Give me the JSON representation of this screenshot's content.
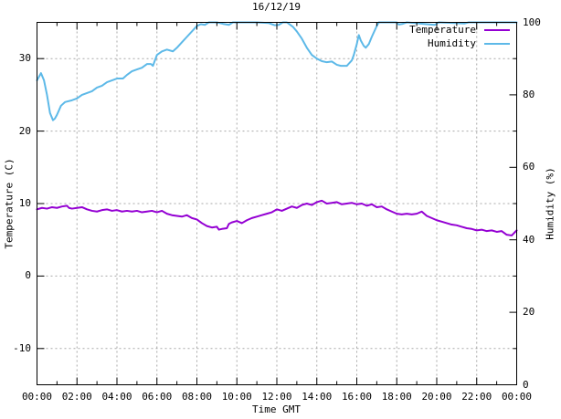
{
  "chart_data": {
    "type": "line",
    "title": "16/12/19",
    "xlabel": "Time GMT",
    "ylabel_left": "Temperature (C)",
    "ylabel_right": "Humidity (%)",
    "x_range_hours": [
      0,
      24
    ],
    "y_left_range": [
      -15,
      35
    ],
    "y_right_range": [
      0,
      100
    ],
    "grid": true,
    "legend_position": "top-right-inside",
    "grid_color": "#a8a8a8",
    "border_color": "#000000",
    "x_ticks": {
      "hours": [
        0,
        2,
        4,
        6,
        8,
        10,
        12,
        14,
        16,
        18,
        20,
        22,
        24
      ],
      "labels": [
        "00:00",
        "02:00",
        "04:00",
        "06:00",
        "08:00",
        "10:00",
        "12:00",
        "14:00",
        "16:00",
        "18:00",
        "20:00",
        "22:00",
        "00:00"
      ],
      "minor_every_hours": 1
    },
    "y_left_ticks": {
      "values": [
        30,
        20,
        10,
        0,
        -10
      ],
      "labels": [
        "30",
        "20",
        "10",
        "0",
        "-10"
      ]
    },
    "y_right_ticks": {
      "values": [
        100,
        80,
        60,
        40,
        20,
        0
      ],
      "labels": [
        "100",
        "80",
        "60",
        "40",
        "20",
        "0"
      ]
    },
    "series": [
      {
        "name": "Temperature",
        "axis": "left",
        "color": "#9400d3",
        "points": [
          [
            0,
            9.2
          ],
          [
            0.25,
            9.4
          ],
          [
            0.5,
            9.3
          ],
          [
            0.75,
            9.5
          ],
          [
            1,
            9.4
          ],
          [
            1.25,
            9.6
          ],
          [
            1.5,
            9.7
          ],
          [
            1.6,
            9.4
          ],
          [
            1.75,
            9.3
          ],
          [
            2,
            9.4
          ],
          [
            2.25,
            9.5
          ],
          [
            2.5,
            9.2
          ],
          [
            2.75,
            9.0
          ],
          [
            3,
            8.9
          ],
          [
            3.25,
            9.1
          ],
          [
            3.5,
            9.2
          ],
          [
            3.75,
            9.0
          ],
          [
            4,
            9.1
          ],
          [
            4.25,
            8.9
          ],
          [
            4.5,
            9.0
          ],
          [
            4.75,
            8.9
          ],
          [
            5,
            9.0
          ],
          [
            5.25,
            8.8
          ],
          [
            5.5,
            8.9
          ],
          [
            5.75,
            9.0
          ],
          [
            6,
            8.8
          ],
          [
            6.25,
            9.0
          ],
          [
            6.5,
            8.6
          ],
          [
            6.75,
            8.4
          ],
          [
            7,
            8.3
          ],
          [
            7.25,
            8.2
          ],
          [
            7.5,
            8.4
          ],
          [
            7.75,
            8.0
          ],
          [
            8,
            7.8
          ],
          [
            8.25,
            7.3
          ],
          [
            8.5,
            6.9
          ],
          [
            8.75,
            6.7
          ],
          [
            9,
            6.8
          ],
          [
            9.1,
            6.4
          ],
          [
            9.25,
            6.5
          ],
          [
            9.5,
            6.6
          ],
          [
            9.6,
            7.2
          ],
          [
            9.75,
            7.4
          ],
          [
            10,
            7.6
          ],
          [
            10.25,
            7.3
          ],
          [
            10.5,
            7.7
          ],
          [
            10.75,
            8.0
          ],
          [
            11,
            8.2
          ],
          [
            11.25,
            8.4
          ],
          [
            11.5,
            8.6
          ],
          [
            11.75,
            8.8
          ],
          [
            12,
            9.2
          ],
          [
            12.25,
            9.0
          ],
          [
            12.5,
            9.3
          ],
          [
            12.75,
            9.6
          ],
          [
            13,
            9.4
          ],
          [
            13.25,
            9.8
          ],
          [
            13.5,
            10.0
          ],
          [
            13.75,
            9.8
          ],
          [
            14,
            10.2
          ],
          [
            14.25,
            10.4
          ],
          [
            14.5,
            10.0
          ],
          [
            14.75,
            10.1
          ],
          [
            15,
            10.2
          ],
          [
            15.25,
            9.9
          ],
          [
            15.5,
            10.0
          ],
          [
            15.75,
            10.1
          ],
          [
            16,
            9.9
          ],
          [
            16.25,
            10.0
          ],
          [
            16.5,
            9.7
          ],
          [
            16.75,
            9.9
          ],
          [
            17,
            9.5
          ],
          [
            17.25,
            9.6
          ],
          [
            17.5,
            9.2
          ],
          [
            17.75,
            8.9
          ],
          [
            18,
            8.6
          ],
          [
            18.25,
            8.5
          ],
          [
            18.5,
            8.6
          ],
          [
            18.75,
            8.5
          ],
          [
            19,
            8.6
          ],
          [
            19.25,
            8.9
          ],
          [
            19.5,
            8.3
          ],
          [
            19.75,
            8.0
          ],
          [
            20,
            7.7
          ],
          [
            20.25,
            7.5
          ],
          [
            20.5,
            7.3
          ],
          [
            20.75,
            7.1
          ],
          [
            21,
            7.0
          ],
          [
            21.25,
            6.8
          ],
          [
            21.5,
            6.6
          ],
          [
            21.75,
            6.5
          ],
          [
            22,
            6.3
          ],
          [
            22.25,
            6.4
          ],
          [
            22.5,
            6.2
          ],
          [
            22.75,
            6.3
          ],
          [
            23,
            6.1
          ],
          [
            23.25,
            6.2
          ],
          [
            23.5,
            5.7
          ],
          [
            23.75,
            5.6
          ],
          [
            24,
            6.3
          ]
        ]
      },
      {
        "name": "Humidity",
        "axis": "right",
        "color": "#5db9e8",
        "points": [
          [
            0,
            84
          ],
          [
            0.2,
            86
          ],
          [
            0.35,
            84
          ],
          [
            0.5,
            80
          ],
          [
            0.65,
            75
          ],
          [
            0.8,
            73
          ],
          [
            0.9,
            73.5
          ],
          [
            1,
            74.5
          ],
          [
            1.2,
            77
          ],
          [
            1.4,
            78
          ],
          [
            1.75,
            78.5
          ],
          [
            2,
            79
          ],
          [
            2.25,
            80
          ],
          [
            2.5,
            80.5
          ],
          [
            2.75,
            81
          ],
          [
            3,
            82
          ],
          [
            3.25,
            82.5
          ],
          [
            3.5,
            83.5
          ],
          [
            3.75,
            84
          ],
          [
            4,
            84.5
          ],
          [
            4.3,
            84.5
          ],
          [
            4.5,
            85.5
          ],
          [
            4.75,
            86.5
          ],
          [
            5,
            87
          ],
          [
            5.25,
            87.5
          ],
          [
            5.5,
            88.5
          ],
          [
            5.7,
            88.5
          ],
          [
            5.8,
            88
          ],
          [
            6,
            91
          ],
          [
            6.25,
            92
          ],
          [
            6.5,
            92.5
          ],
          [
            6.8,
            92
          ],
          [
            7,
            93
          ],
          [
            7.25,
            94.5
          ],
          [
            7.5,
            96
          ],
          [
            7.75,
            97.5
          ],
          [
            8,
            99
          ],
          [
            8.2,
            99.5
          ],
          [
            8.4,
            99.3
          ],
          [
            8.6,
            100
          ],
          [
            9,
            100
          ],
          [
            9.3,
            99.6
          ],
          [
            9.6,
            99.3
          ],
          [
            9.8,
            100
          ],
          [
            11,
            100
          ],
          [
            11.6,
            99.8
          ],
          [
            11.9,
            99.2
          ],
          [
            12.1,
            99.3
          ],
          [
            12.3,
            100
          ],
          [
            12.5,
            100
          ],
          [
            12.6,
            99.6
          ],
          [
            12.8,
            98.8
          ],
          [
            13,
            97.5
          ],
          [
            13.25,
            95.5
          ],
          [
            13.5,
            93
          ],
          [
            13.75,
            91
          ],
          [
            14,
            90
          ],
          [
            14.25,
            89.3
          ],
          [
            14.5,
            89
          ],
          [
            14.75,
            89.2
          ],
          [
            15,
            88.3
          ],
          [
            15.2,
            88
          ],
          [
            15.5,
            88
          ],
          [
            15.75,
            89.5
          ],
          [
            15.85,
            91
          ],
          [
            16,
            94
          ],
          [
            16.1,
            96.5
          ],
          [
            16.2,
            95
          ],
          [
            16.35,
            93.5
          ],
          [
            16.45,
            93
          ],
          [
            16.6,
            94
          ],
          [
            16.75,
            96
          ],
          [
            17,
            99
          ],
          [
            17.1,
            100
          ],
          [
            18,
            100
          ],
          [
            18.1,
            99.4
          ],
          [
            18.3,
            99.6
          ],
          [
            18.5,
            100
          ],
          [
            19.9,
            99.3
          ],
          [
            20.1,
            100
          ],
          [
            21.4,
            99.7
          ],
          [
            21.6,
            100
          ],
          [
            24,
            100
          ]
        ]
      }
    ]
  },
  "legend": {
    "items": [
      {
        "label": "Temperature",
        "color": "#9400d3"
      },
      {
        "label": "Humidity",
        "color": "#5db9e8"
      }
    ]
  }
}
